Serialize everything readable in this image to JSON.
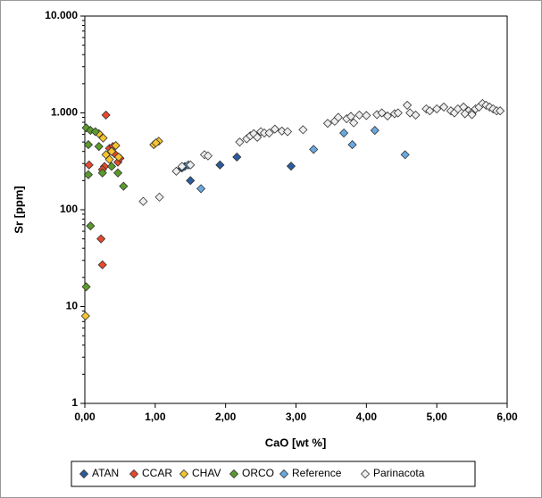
{
  "chart_data": {
    "type": "scatter",
    "xlabel": "CaO [wt %]",
    "ylabel": "Sr [ppm]",
    "xlim": [
      0,
      6
    ],
    "xticks": [
      {
        "value": 0,
        "label": "0,00"
      },
      {
        "value": 1,
        "label": "1,00"
      },
      {
        "value": 2,
        "label": "2,00"
      },
      {
        "value": 3,
        "label": "3,00"
      },
      {
        "value": 4,
        "label": "4,00"
      },
      {
        "value": 5,
        "label": "5,00"
      },
      {
        "value": 6,
        "label": "6,00"
      }
    ],
    "ylim": [
      1,
      10000
    ],
    "yscale": "log",
    "yticks": [
      1,
      10,
      100,
      {
        "value": 1000,
        "label": "1.000"
      },
      {
        "value": 10000,
        "label": "10.000"
      }
    ],
    "grid": false,
    "legend": "bottom",
    "series": [
      {
        "name": "ATAN",
        "color": "#2b5c9e",
        "x": [
          1.38,
          1.42,
          1.5,
          1.92,
          2.16,
          2.93
        ],
        "values": [
          270,
          280,
          200,
          290,
          350,
          282
        ]
      },
      {
        "name": "CCAR",
        "color": "#e8492b",
        "x": [
          0.3,
          0.06,
          0.23,
          0.25,
          0.35,
          0.4,
          0.47,
          0.5,
          0.28,
          0.25,
          0.42
        ],
        "values": [
          950,
          290,
          50,
          27,
          430,
          450,
          310,
          340,
          280,
          260,
          380
        ]
      },
      {
        "name": "CHAV",
        "color": "#f5c52e",
        "x": [
          0.01,
          1.05,
          0.98,
          1.01,
          0.2,
          0.26,
          0.3,
          0.35,
          0.44,
          0.48,
          0.38
        ],
        "values": [
          8,
          510,
          470,
          490,
          610,
          550,
          370,
          330,
          460,
          350,
          400
        ]
      },
      {
        "name": "ORCO",
        "color": "#5b9a2c",
        "x": [
          0.02,
          0.08,
          0.15,
          0.2,
          0.05,
          0.05,
          0.25,
          0.38,
          0.47,
          0.55,
          0.08,
          0.02
        ],
        "values": [
          700,
          660,
          640,
          450,
          470,
          230,
          240,
          280,
          240,
          175,
          68,
          16
        ]
      },
      {
        "name": "Reference",
        "color": "#6aa9e0",
        "x": [
          1.47,
          1.65,
          3.25,
          3.68,
          3.8,
          4.12,
          4.55
        ],
        "values": [
          290,
          165,
          420,
          620,
          470,
          660,
          370
        ]
      },
      {
        "name": "Parinacota",
        "color": "#eeeeee",
        "x": [
          0.83,
          1.06,
          1.3,
          1.38,
          1.5,
          1.7,
          1.75,
          2.2,
          2.3,
          2.35,
          2.4,
          2.45,
          2.5,
          2.55,
          2.62,
          2.7,
          2.8,
          2.88,
          3.1,
          3.45,
          3.55,
          3.6,
          3.72,
          3.78,
          3.82,
          3.9,
          4.0,
          4.15,
          4.22,
          4.3,
          4.4,
          4.45,
          4.58,
          4.62,
          4.7,
          4.85,
          4.9,
          5.0,
          5.1,
          5.2,
          5.25,
          5.3,
          5.38,
          5.45,
          5.5,
          5.55,
          5.6,
          5.65,
          5.7,
          5.75,
          5.8,
          5.85,
          5.9,
          5.4,
          5.5
        ],
        "values": [
          122,
          135,
          250,
          280,
          290,
          370,
          360,
          500,
          540,
          580,
          610,
          560,
          640,
          620,
          620,
          680,
          650,
          640,
          670,
          780,
          820,
          900,
          870,
          920,
          790,
          950,
          940,
          960,
          1000,
          930,
          980,
          1000,
          1200,
          1000,
          950,
          1100,
          1050,
          1100,
          1150,
          1050,
          1000,
          1100,
          1150,
          1050,
          1000,
          1100,
          1150,
          1250,
          1200,
          1150,
          1100,
          1050,
          1050,
          980,
          960
        ]
      }
    ]
  }
}
